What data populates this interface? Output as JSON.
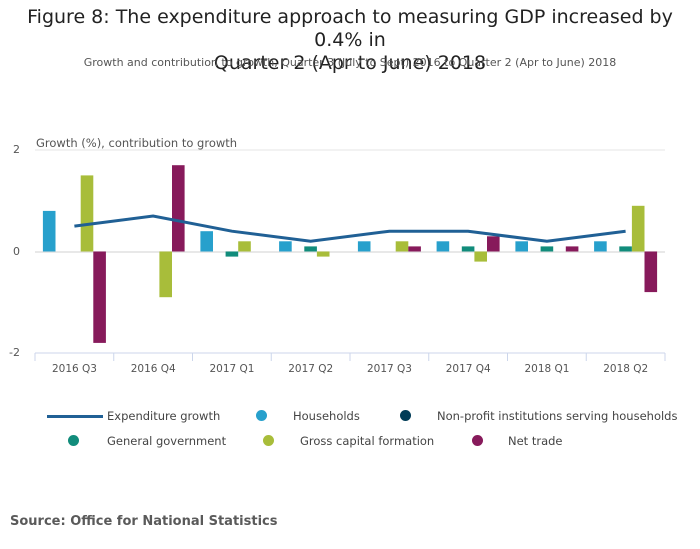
{
  "chart_data": {
    "type": "bar",
    "title": "Figure 8: The expenditure approach to measuring GDP increased by 0.4% in Quarter 2 (Apr to June) 2018",
    "title_lines": [
      "Figure 8: The expenditure approach to measuring GDP increased by 0.4% in",
      "Quarter 2 (Apr to June) 2018"
    ],
    "subtitle": "Growth and contribution to growth, Quarter 3 (July to Sept) 2016 to Quarter 2 (Apr to June) 2018",
    "ylabel": "Growth (%), contribution to growth",
    "xlabel": "",
    "ylim": [
      -2,
      2
    ],
    "yticks": [
      2,
      0,
      -2
    ],
    "grid": true,
    "categories": [
      "2016 Q3",
      "2016 Q4",
      "2017 Q1",
      "2017 Q2",
      "2017 Q3",
      "2017 Q4",
      "2018 Q1",
      "2018 Q2"
    ],
    "series": [
      {
        "name": "Households",
        "type": "bar",
        "color": "#27a0cc",
        "values": [
          0.8,
          0,
          0.4,
          0.2,
          0.2,
          0.2,
          0.2,
          0.2
        ]
      },
      {
        "name": "Non-profit institutions serving households",
        "type": "bar",
        "color": "#003c57",
        "values": [
          0,
          0,
          0,
          0,
          0,
          0,
          0,
          0
        ]
      },
      {
        "name": "General government",
        "type": "bar",
        "color": "#118c7b",
        "values": [
          0,
          0,
          -0.1,
          0.1,
          0,
          0.1,
          0.1,
          0.1
        ]
      },
      {
        "name": "Gross capital formation",
        "type": "bar",
        "color": "#a8bd3a",
        "values": [
          1.5,
          -0.9,
          0.2,
          -0.1,
          0.2,
          -0.2,
          0,
          0.9
        ]
      },
      {
        "name": "Net trade",
        "type": "bar",
        "color": "#871a5b",
        "values": [
          -1.8,
          1.7,
          0,
          0,
          0.1,
          0.3,
          0.1,
          -0.8
        ]
      },
      {
        "name": "Expenditure growth",
        "type": "line",
        "color": "#206095",
        "values": [
          0.5,
          0.7,
          0.4,
          0.2,
          0.4,
          0.4,
          0.2,
          0.4
        ]
      }
    ],
    "legend_position": "bottom"
  },
  "legend": [
    {
      "label": "Expenditure growth",
      "kind": "line",
      "color": "#206095"
    },
    {
      "label": "Households",
      "kind": "dot",
      "color": "#27a0cc"
    },
    {
      "label": "Non-profit institutions serving households",
      "kind": "dot",
      "color": "#003c57"
    },
    {
      "label": "General government",
      "kind": "dot",
      "color": "#118c7b"
    },
    {
      "label": "Gross capital formation",
      "kind": "dot",
      "color": "#a8bd3a"
    },
    {
      "label": "Net trade",
      "kind": "dot",
      "color": "#871a5b"
    }
  ],
  "source": "Source: Office for National Statistics"
}
